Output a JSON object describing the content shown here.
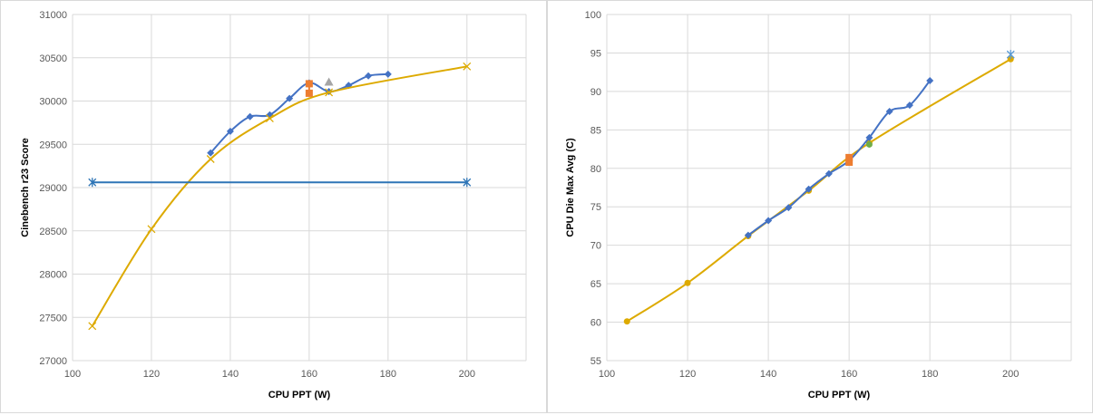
{
  "chart_data": [
    {
      "type": "line",
      "xlabel": "CPU PPT (W)",
      "ylabel": "Cinebench r23 Score",
      "xlim": [
        100,
        215
      ],
      "ylim": [
        27000,
        31000
      ],
      "xticks": [
        100,
        120,
        140,
        160,
        180,
        200
      ],
      "yticks": [
        27000,
        27500,
        28000,
        28500,
        29000,
        29500,
        30000,
        30500,
        31000
      ],
      "grid": true,
      "legend": "none",
      "series": [
        {
          "color": "#4472c4",
          "marker": "diamond",
          "smooth": true,
          "x": [
            135,
            140,
            145,
            150,
            155,
            160,
            165,
            170,
            175,
            180
          ],
          "y": [
            29400,
            29650,
            29820,
            29840,
            30030,
            30210,
            30110,
            30180,
            30290,
            30310
          ]
        },
        {
          "color": "#ddaa00",
          "marker": "x",
          "smooth": true,
          "x": [
            105,
            120,
            135,
            150,
            165,
            200
          ],
          "y": [
            27400,
            28520,
            29330,
            29800,
            30100,
            30400
          ]
        },
        {
          "color": "#2e75b6",
          "marker": "star",
          "smooth": false,
          "x": [
            105,
            200
          ],
          "y": [
            29060,
            29060
          ]
        },
        {
          "color": "#ed7d31",
          "marker": "square",
          "smooth": false,
          "x": [
            160,
            160
          ],
          "y": [
            30090,
            30200
          ]
        },
        {
          "color": "#a5a5a5",
          "marker": "triangle",
          "smooth": false,
          "x": [
            165
          ],
          "y": [
            30220
          ]
        }
      ]
    },
    {
      "type": "line",
      "xlabel": "CPU PPT (W)",
      "ylabel": "CPU Die Max  Avg (C)",
      "xlim": [
        100,
        215
      ],
      "ylim": [
        55,
        100
      ],
      "xticks": [
        100,
        120,
        140,
        160,
        180,
        200
      ],
      "yticks": [
        55,
        60,
        65,
        70,
        75,
        80,
        85,
        90,
        95,
        100
      ],
      "grid": true,
      "legend": "none",
      "series": [
        {
          "color": "#ddaa00",
          "marker": "circle",
          "smooth": true,
          "x": [
            105,
            120,
            135,
            150,
            165,
            200
          ],
          "y": [
            60.1,
            65.1,
            71.2,
            77.1,
            83.3,
            94.2
          ]
        },
        {
          "color": "#4472c4",
          "marker": "diamond",
          "smooth": true,
          "x": [
            135,
            140,
            145,
            150,
            155,
            160,
            165,
            170,
            175,
            180
          ],
          "y": [
            71.3,
            73.2,
            74.9,
            77.3,
            79.3,
            81.0,
            84.0,
            87.4,
            88.2,
            91.4
          ]
        },
        {
          "color": "#5b9bd5",
          "marker": "star",
          "smooth": false,
          "x": [
            200
          ],
          "y": [
            94.8
          ]
        },
        {
          "color": "#ed7d31",
          "marker": "square",
          "smooth": false,
          "x": [
            160,
            160
          ],
          "y": [
            80.8,
            81.4
          ]
        },
        {
          "color": "#70ad47",
          "marker": "circle",
          "smooth": false,
          "x": [
            165
          ],
          "y": [
            83.1
          ]
        }
      ]
    }
  ]
}
